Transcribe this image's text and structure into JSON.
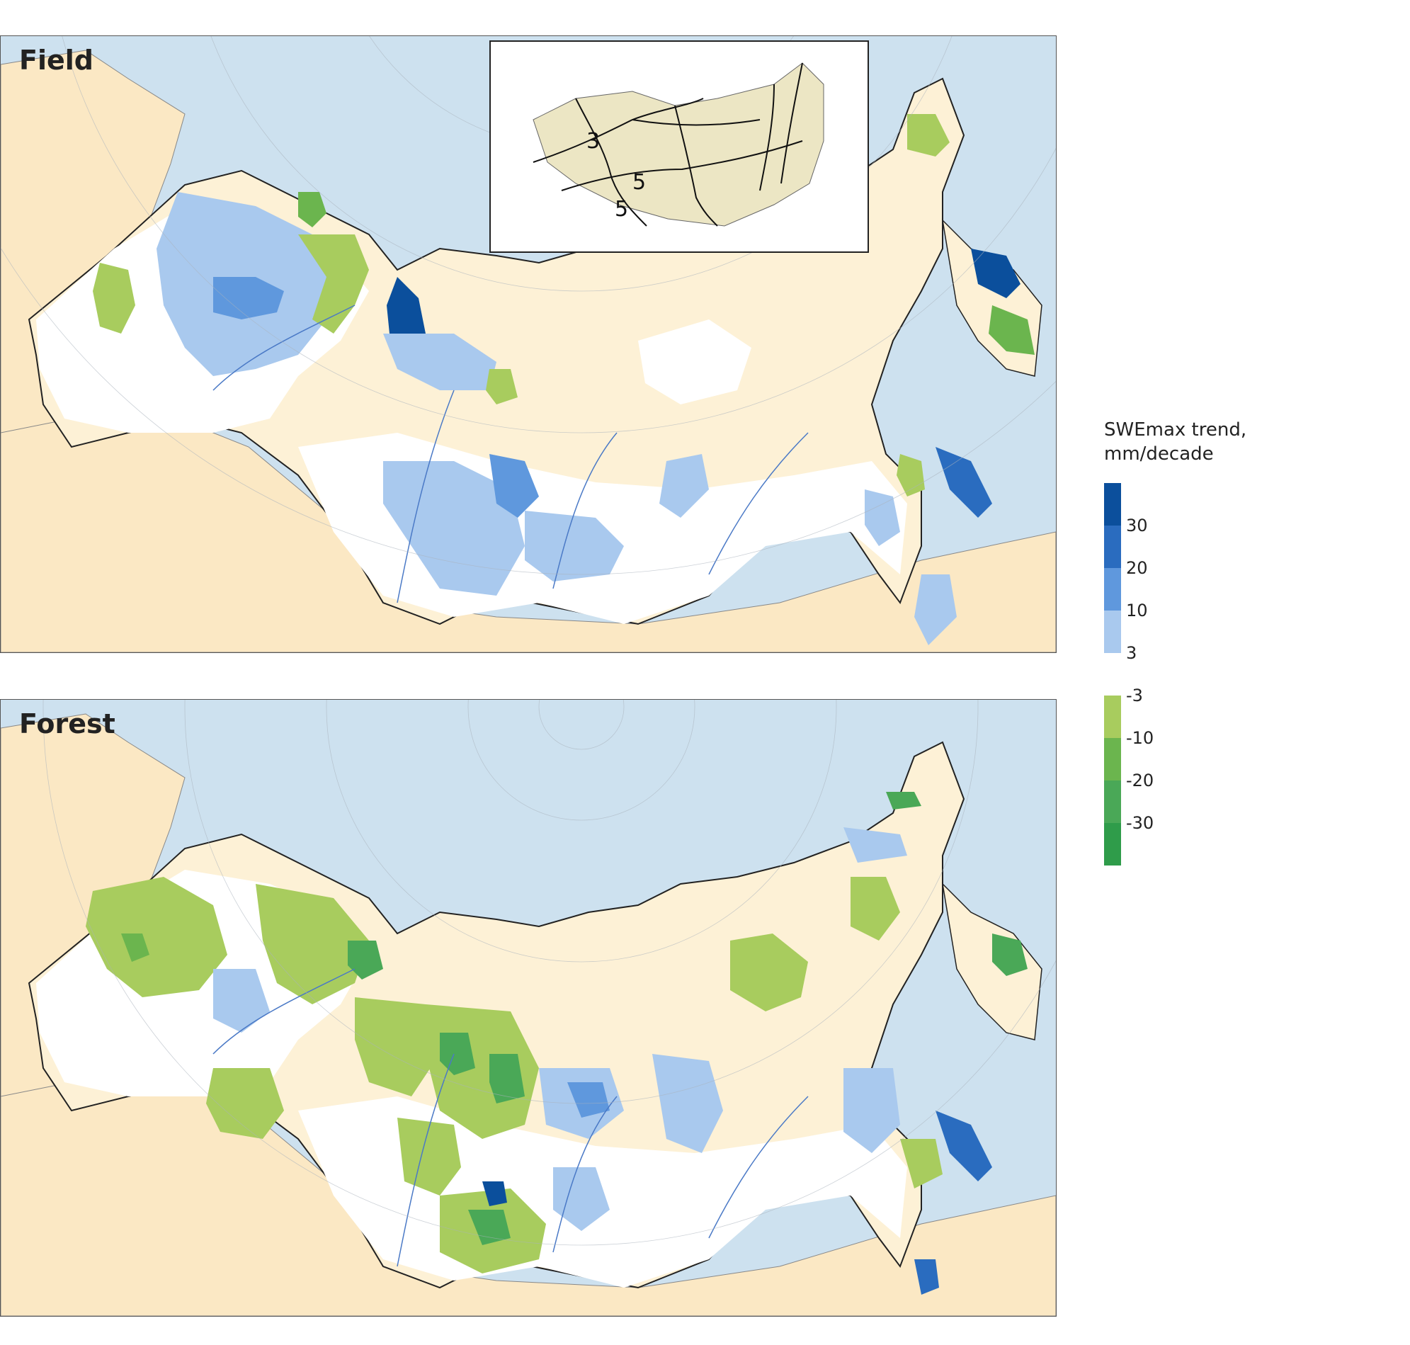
{
  "panels": {
    "field": {
      "title": "Field"
    },
    "forest": {
      "title": "Forest"
    }
  },
  "inset": {
    "labels": [
      "3",
      "5",
      "5"
    ]
  },
  "legend": {
    "title_line1": "SWEmax trend,",
    "title_line2": "mm/decade",
    "ticks": [
      "30",
      "20",
      "10",
      "3",
      "-3",
      "-10",
      "-20",
      "-30"
    ],
    "colors": [
      "#0b4f9c",
      "#2a6cbf",
      "#5f98dd",
      "#a9c9ee",
      "#ffffff",
      "#a8cc5e",
      "#6bb54e",
      "#4aa857",
      "#2f9c4a"
    ]
  },
  "colors": {
    "ocean": "#cde1ef",
    "land_outside": "#fbe8c4",
    "russia_base": "#fdf1d6",
    "no_change": "#ffffff",
    "grid": "#aab3bd",
    "river": "#4a79c6",
    "border": "#222222"
  }
}
